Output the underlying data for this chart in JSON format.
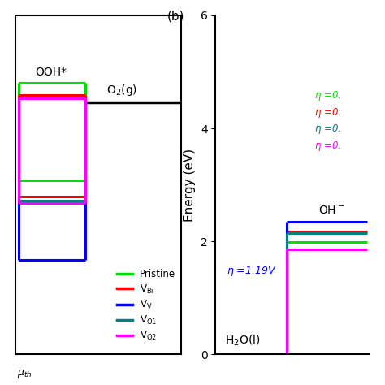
{
  "panel_a": {
    "ooh_label": "OOH*",
    "o2_label": "O$_2$(g)",
    "o2_level": 5.2,
    "species": [
      {
        "name": "Pristine",
        "color": "#00dd00",
        "ooh": 5.6,
        "low": 3.6
      },
      {
        "name": "V_Bi",
        "color": "#ff0000",
        "ooh": 5.35,
        "low": 3.25
      },
      {
        "name": "V_V",
        "color": "#0000ff",
        "ooh": 5.28,
        "low": 1.95
      },
      {
        "name": "V_O1",
        "color": "#008080",
        "ooh": 5.28,
        "low": 3.18
      },
      {
        "name": "V_O2",
        "color": "#ff00ff",
        "ooh": 5.28,
        "low": 3.12
      }
    ],
    "ylim": [
      0,
      7
    ]
  },
  "panel_b": {
    "h2o_label": "H$_2$O(l)",
    "oh_label": "OH$^-$",
    "eta_main_label": "$\\eta$ =1.19V",
    "eta_main_color": "#0000ff",
    "species": [
      {
        "name": "Pristine",
        "color": "#00dd00",
        "oh": 1.98
      },
      {
        "name": "V_Bi",
        "color": "#ff0000",
        "oh": 2.18
      },
      {
        "name": "V_V",
        "color": "#0000ff",
        "oh": 2.35
      },
      {
        "name": "V_O1",
        "color": "#008080",
        "oh": 2.15
      },
      {
        "name": "V_O2",
        "color": "#ff00ff",
        "oh": 1.85
      }
    ],
    "eta_annotations": [
      {
        "text": "$\\eta$ =0.",
        "color": "#00dd00"
      },
      {
        "text": "$\\eta$ =0.",
        "color": "#ff0000"
      },
      {
        "text": "$\\eta$ =0.",
        "color": "#008080"
      },
      {
        "text": "$\\eta$ =0.",
        "color": "#ff00ff"
      }
    ],
    "ylim": [
      0,
      6
    ]
  },
  "colors": [
    "#00dd00",
    "#ff0000",
    "#0000ff",
    "#008080",
    "#ff00ff"
  ],
  "lw": 2.2
}
